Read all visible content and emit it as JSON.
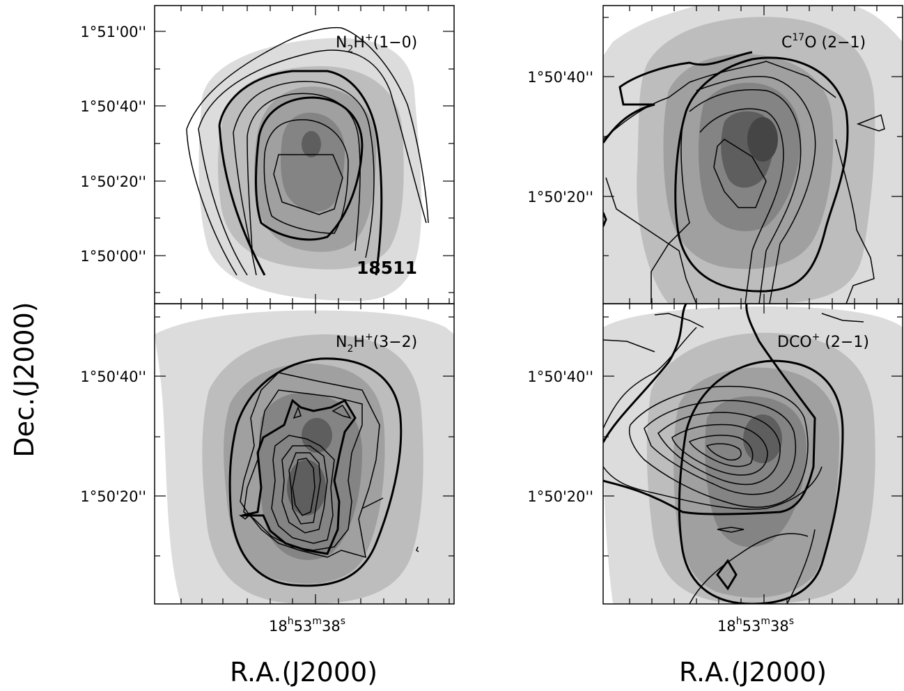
{
  "figure": {
    "ylabel": "Dec.(J2000)",
    "xlabel_left": "R.A.(J2000)",
    "xlabel_right": "R.A.(J2000)",
    "ra_tick_left": "18h53m38s",
    "ra_tick_right": "18h53m38s",
    "colors": {
      "shade1": "#dcdcdc",
      "shade2": "#bdbdbd",
      "shade3": "#a0a0a0",
      "shade4": "#848484",
      "shade5": "#5e5e5e",
      "line": "#000000"
    }
  },
  "chart_data": [
    {
      "type": "contour",
      "panel": "top-left",
      "title": "N2H+(1-0)",
      "title_parts": {
        "mol": "N",
        "sub": "2",
        "h": "H",
        "sup": "+",
        "trans": "(1−0)"
      },
      "source": "18511",
      "ylabel": "Dec.(J2000)",
      "yticks": [
        "1°51'00''",
        "1°50'40''",
        "1°50'20''",
        "1°50'00''"
      ],
      "yticks_arcsec": [
        60,
        40,
        20,
        0
      ],
      "contours": "N2H+(1-0) integrated intensity over grey-scale continuum"
    },
    {
      "type": "contour",
      "panel": "top-right",
      "title": "C17O (2-1)",
      "title_parts": {
        "mol": "C",
        "sup": "17",
        "rest": "O (2−1)"
      },
      "yticks": [
        "1°50'40''",
        "1°50'20''"
      ],
      "yticks_arcsec": [
        40,
        20
      ]
    },
    {
      "type": "contour",
      "panel": "bottom-left",
      "title": "N2H+(3-2)",
      "title_parts": {
        "mol": "N",
        "sub": "2",
        "h": "H",
        "sup": "+",
        "trans": "(3−2)"
      },
      "xlabel": "R.A.(J2000)",
      "xtick": "18h53m38s",
      "yticks": [
        "1°50'40''",
        "1°50'20''"
      ],
      "yticks_arcsec": [
        40,
        20
      ]
    },
    {
      "type": "contour",
      "panel": "bottom-right",
      "title": "DCO+ (2-1)",
      "title_parts": {
        "mol": "DCO",
        "sup": "+",
        "trans": " (2−1)"
      },
      "xlabel": "R.A.(J2000)",
      "xtick": "18h53m38s",
      "yticks": [
        "1°50'40''",
        "1°50'20''"
      ],
      "yticks_arcsec": [
        40,
        20
      ]
    }
  ]
}
